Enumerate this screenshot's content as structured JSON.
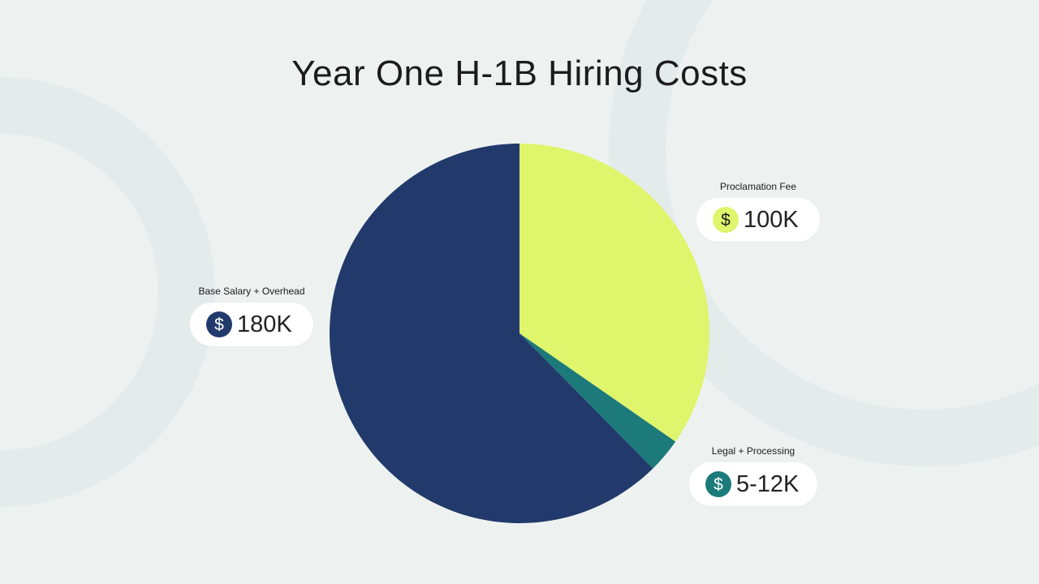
{
  "title": "Year One H-1B Hiring Costs",
  "colors": {
    "background": "#edf2f1",
    "background_ring": "#e3eaea",
    "base_salary": "#223a6b",
    "proclamation_fee": "#dff56b",
    "legal_processing": "#1d7a7a"
  },
  "icons": {
    "coin": "dollar-coin-icon",
    "coin_glyph": "$"
  },
  "callouts": {
    "base": {
      "label": "Base Salary + Overhead",
      "value": "180K"
    },
    "proclamation": {
      "label": "Proclamation Fee",
      "value": "100K"
    },
    "legal": {
      "label": "Legal + Processing",
      "value": "5-12K"
    }
  },
  "chart_data": {
    "type": "pie",
    "title": "Year One H-1B Hiring Costs",
    "start_angle_deg": 0,
    "direction": "clockwise",
    "slices": [
      {
        "label": "Proclamation Fee",
        "value": 100,
        "display": "100K",
        "color": "#dff56b"
      },
      {
        "label": "Legal + Processing",
        "value": 8.5,
        "display": "5-12K",
        "color": "#1d7a7a"
      },
      {
        "label": "Base Salary + Overhead",
        "value": 180,
        "display": "180K",
        "color": "#223a6b"
      }
    ],
    "legend": "none (callout labels)"
  }
}
